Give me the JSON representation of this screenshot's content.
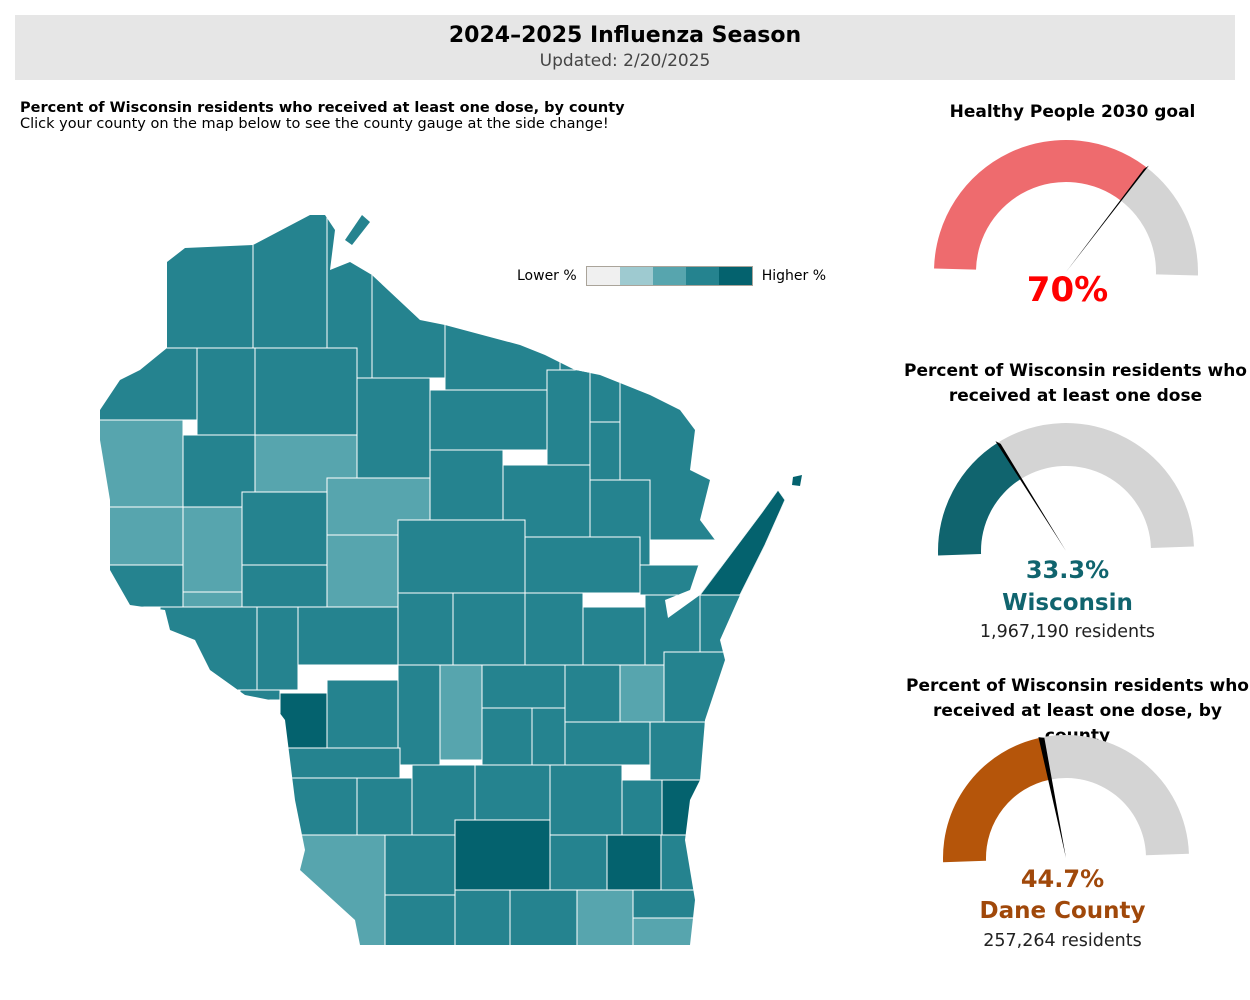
{
  "header": {
    "title": "2024–2025 Influenza Season",
    "updated": "Updated: 2/20/2025"
  },
  "map": {
    "title": "Percent of Wisconsin residents who received at least one dose, by county",
    "instruction": "Click your county on the map below to see the county gauge at the side change!",
    "legend": {
      "low_label": "Lower %",
      "high_label": "Higher %",
      "colors": [
        "#f0f0f0",
        "#9ecad0",
        "#57a5ae",
        "#25838f",
        "#04626e"
      ]
    }
  },
  "gauges": [
    {
      "title": "Healthy People 2030 goal",
      "value": 70,
      "value_label": "70%",
      "color": "#ee6b6e",
      "text_color": "#ff0000"
    },
    {
      "title": "Percent of Wisconsin residents who received at least one dose",
      "value": 33.3,
      "value_label": "33.3%",
      "name": "Wisconsin",
      "residents": "1,967,190 residents",
      "color": "#10646e",
      "text_color": "#10646e"
    },
    {
      "title": "Percent of Wisconsin residents who received at least one dose, by county",
      "value": 44.7,
      "value_label": "44.7%",
      "name": "Dane County",
      "residents": "257,264 residents",
      "color": "#b5550a",
      "text_color": "#a0480a"
    }
  ]
}
